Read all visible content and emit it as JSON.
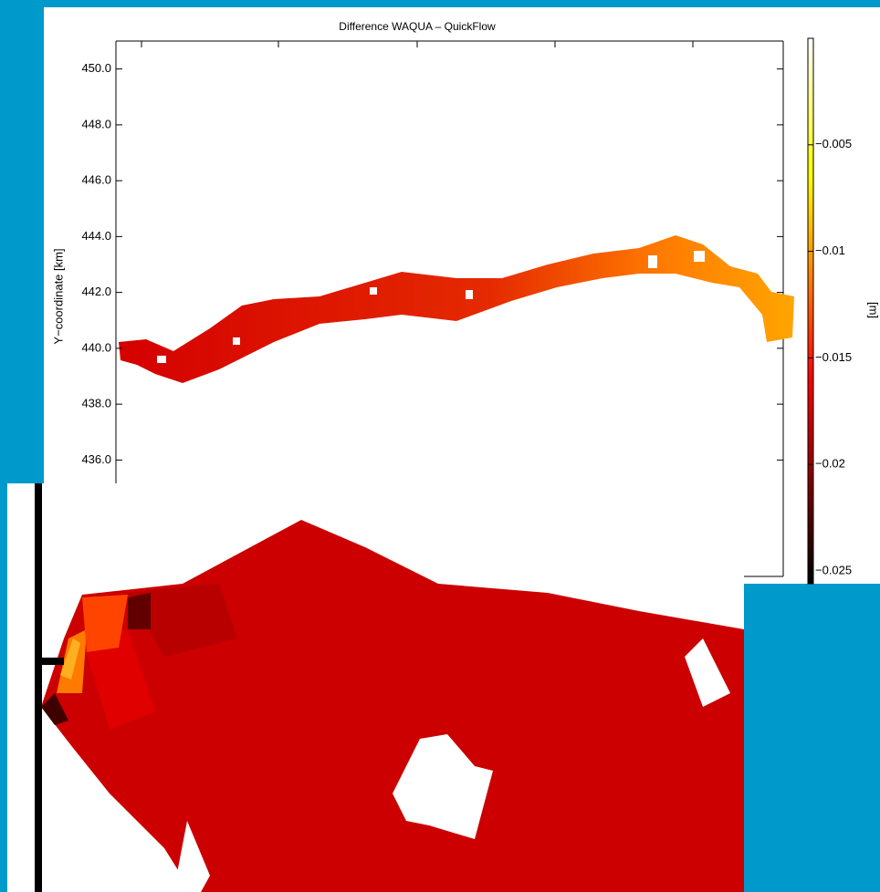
{
  "chart_data": {
    "type": "map",
    "title": "Difference WAQUA – QuickFlow",
    "y_label": "Y−coordinate [km]",
    "ylim": [
      435,
      451
    ],
    "yticks": [
      {
        "value": 450,
        "label": "450.0"
      },
      {
        "value": 448,
        "label": "448.0"
      },
      {
        "value": 446,
        "label": "446.0"
      },
      {
        "value": 444,
        "label": "444.0"
      },
      {
        "value": 442,
        "label": "442.0"
      },
      {
        "value": 440,
        "label": "440.0"
      },
      {
        "value": 438,
        "label": "438.0"
      },
      {
        "value": 436,
        "label": "436.0"
      }
    ],
    "colorbar_label": "[m]",
    "clim": [
      -0.0256,
      0
    ],
    "cticks": [
      {
        "value": -0.005,
        "label": "−0.005"
      },
      {
        "value": -0.01,
        "label": "−0.01"
      },
      {
        "value": -0.015,
        "label": "−0.015"
      },
      {
        "value": -0.02,
        "label": "−0.02"
      },
      {
        "value": -0.025,
        "label": "−0.025"
      }
    ]
  }
}
